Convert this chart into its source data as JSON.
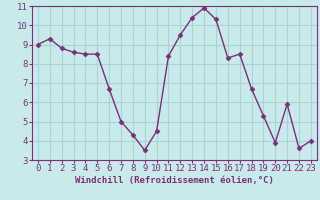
{
  "x": [
    0,
    1,
    2,
    3,
    4,
    5,
    6,
    7,
    8,
    9,
    10,
    11,
    12,
    13,
    14,
    15,
    16,
    17,
    18,
    19,
    20,
    21,
    22,
    23
  ],
  "y": [
    9.0,
    9.3,
    8.8,
    8.6,
    8.5,
    8.5,
    6.7,
    5.0,
    4.3,
    3.5,
    4.5,
    8.4,
    9.5,
    10.4,
    10.9,
    10.3,
    8.3,
    8.5,
    6.7,
    5.3,
    3.9,
    5.9,
    3.6,
    4.0
  ],
  "line_color": "#7b2f7b",
  "marker": "D",
  "marker_size": 2.5,
  "bg_color": "#c8eaea",
  "grid_color": "#aad4d4",
  "xlabel": "Windchill (Refroidissement éolien,°C)",
  "xlabel_color": "#7b2f7b",
  "tick_color": "#7b2f7b",
  "axis_color": "#7b2f7b",
  "xlim": [
    -0.5,
    23.5
  ],
  "ylim": [
    3,
    11
  ],
  "yticks": [
    3,
    4,
    5,
    6,
    7,
    8,
    9,
    10,
    11
  ],
  "xticks": [
    0,
    1,
    2,
    3,
    4,
    5,
    6,
    7,
    8,
    9,
    10,
    11,
    12,
    13,
    14,
    15,
    16,
    17,
    18,
    19,
    20,
    21,
    22,
    23
  ],
  "linewidth": 1.0,
  "font_size": 6.5
}
